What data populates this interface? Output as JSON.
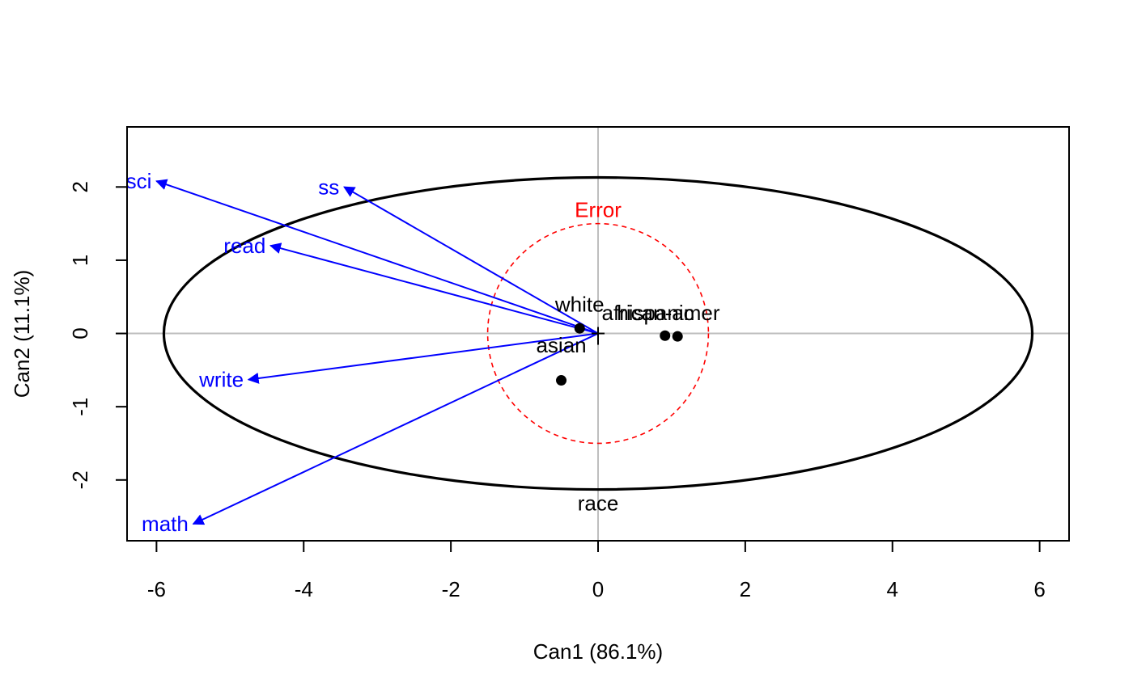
{
  "chart_data": {
    "type": "scatter",
    "xlabel": "Can1 (86.1%)",
    "ylabel": "Can2 (11.1%)",
    "xlim": [
      -6.4,
      6.4
    ],
    "ylim": [
      -2.83,
      2.82
    ],
    "x_ticks": [
      -6,
      -4,
      -2,
      0,
      2,
      4,
      6
    ],
    "y_ticks": [
      -2,
      -1,
      0,
      1,
      2
    ],
    "reference_lines": {
      "x": 0,
      "y": 0,
      "color": "#bebebe"
    },
    "group_means": [
      {
        "name": "white",
        "x": -0.25,
        "y": 0.07
      },
      {
        "name": "african-amer",
        "x": 1.08,
        "y": -0.04
      },
      {
        "name": "hispanic",
        "x": 0.91,
        "y": -0.03
      },
      {
        "name": "asian",
        "x": -0.5,
        "y": -0.64
      }
    ],
    "vectors": [
      {
        "name": "sci",
        "x": -6.0,
        "y": 2.08
      },
      {
        "name": "ss",
        "x": -3.45,
        "y": 2.0
      },
      {
        "name": "read",
        "x": -4.45,
        "y": 1.2
      },
      {
        "name": "write",
        "x": -4.75,
        "y": -0.63
      },
      {
        "name": "math",
        "x": -5.5,
        "y": -2.6
      }
    ],
    "ellipses": [
      {
        "name": "race",
        "cx": 0,
        "cy": 0,
        "rx": 5.9,
        "ry": 2.13,
        "color": "#000000",
        "style": "solid"
      },
      {
        "name": "Error",
        "cx": 0,
        "cy": 0,
        "rx": 1.5,
        "ry": 1.5,
        "color": "#ff0000",
        "style": "dashed"
      }
    ],
    "colors": {
      "vectors": "#0000ff",
      "error": "#ff0000",
      "points": "#000000"
    }
  }
}
